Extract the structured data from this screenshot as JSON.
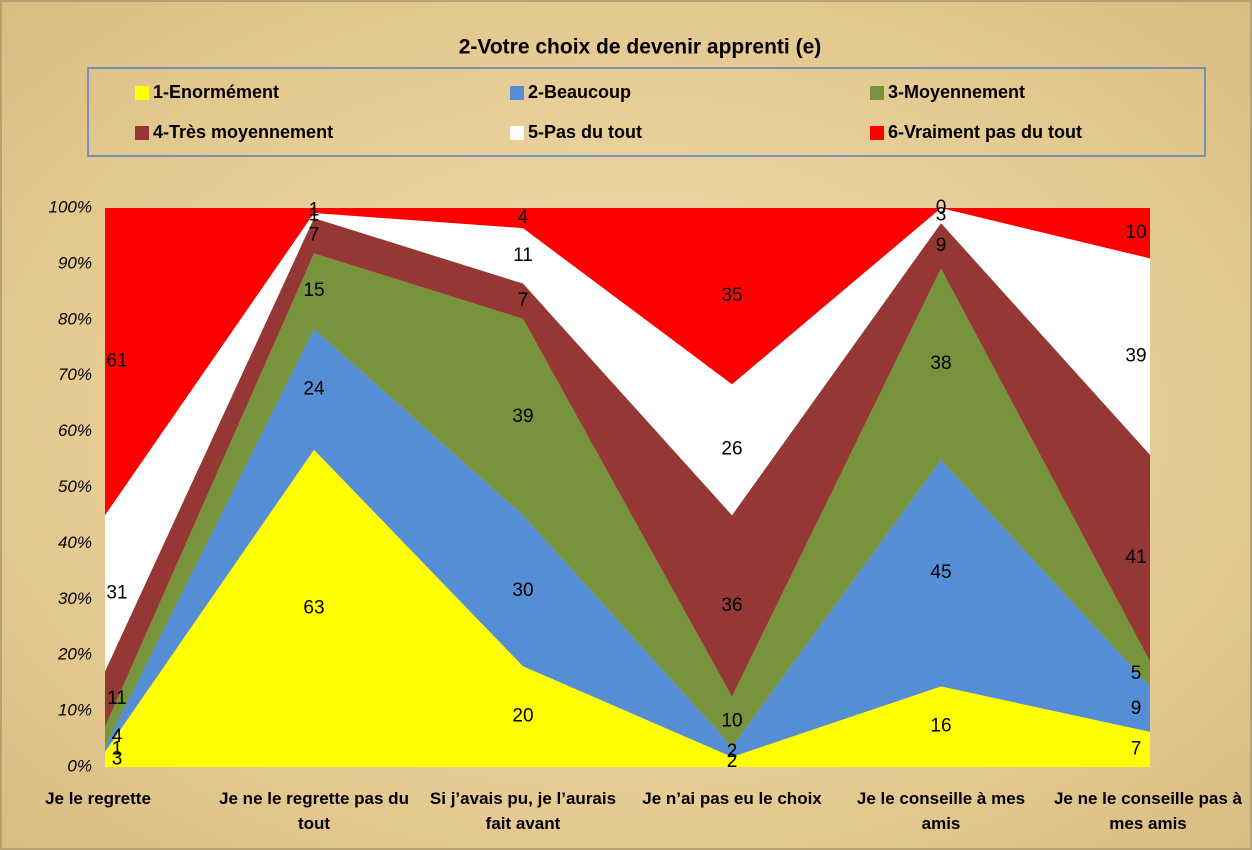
{
  "chart_data": {
    "type": "area",
    "stacking": "percent",
    "title": "2-Votre choix de devenir apprenti (e)",
    "categories": [
      "Je le regrette",
      "Je ne le regrette pas du tout",
      "Si j’avais pu,  je l’aurais fait avant",
      "Je n’ai pas eu le choix",
      "Je le conseille à mes amis",
      "Je ne le conseille pas à mes amis"
    ],
    "series": [
      {
        "name": "1-Enormément",
        "color": "#ffff00",
        "values": [
          3,
          63,
          20,
          2,
          16,
          7
        ]
      },
      {
        "name": "2-Beaucoup",
        "color": "#558ed5",
        "values": [
          1,
          24,
          30,
          2,
          45,
          9
        ]
      },
      {
        "name": "3-Moyennement",
        "color": "#77933c",
        "values": [
          4,
          15,
          39,
          10,
          38,
          5
        ]
      },
      {
        "name": "4-Très moyennement",
        "color": "#953735",
        "values": [
          11,
          7,
          7,
          36,
          9,
          41
        ]
      },
      {
        "name": "5-Pas du tout",
        "color": "#ffffff",
        "values": [
          31,
          1,
          11,
          26,
          3,
          39
        ]
      },
      {
        "name": "6-Vraiment pas du tout",
        "color": "#ff0000",
        "values": [
          61,
          1,
          4,
          35,
          0,
          10
        ]
      }
    ],
    "ylim": [
      0,
      100
    ],
    "yticks": [
      {
        "value": 0,
        "label": "0%"
      },
      {
        "value": 10,
        "label": "10%"
      },
      {
        "value": 20,
        "label": "20%"
      },
      {
        "value": 30,
        "label": "30%"
      },
      {
        "value": 40,
        "label": "40%"
      },
      {
        "value": 50,
        "label": "50%"
      },
      {
        "value": 60,
        "label": "60%"
      },
      {
        "value": 70,
        "label": "70%"
      },
      {
        "value": 80,
        "label": "80%"
      },
      {
        "value": 90,
        "label": "90%"
      },
      {
        "value": 100,
        "label": "100%"
      }
    ],
    "legend": "top",
    "data_labels": true
  }
}
